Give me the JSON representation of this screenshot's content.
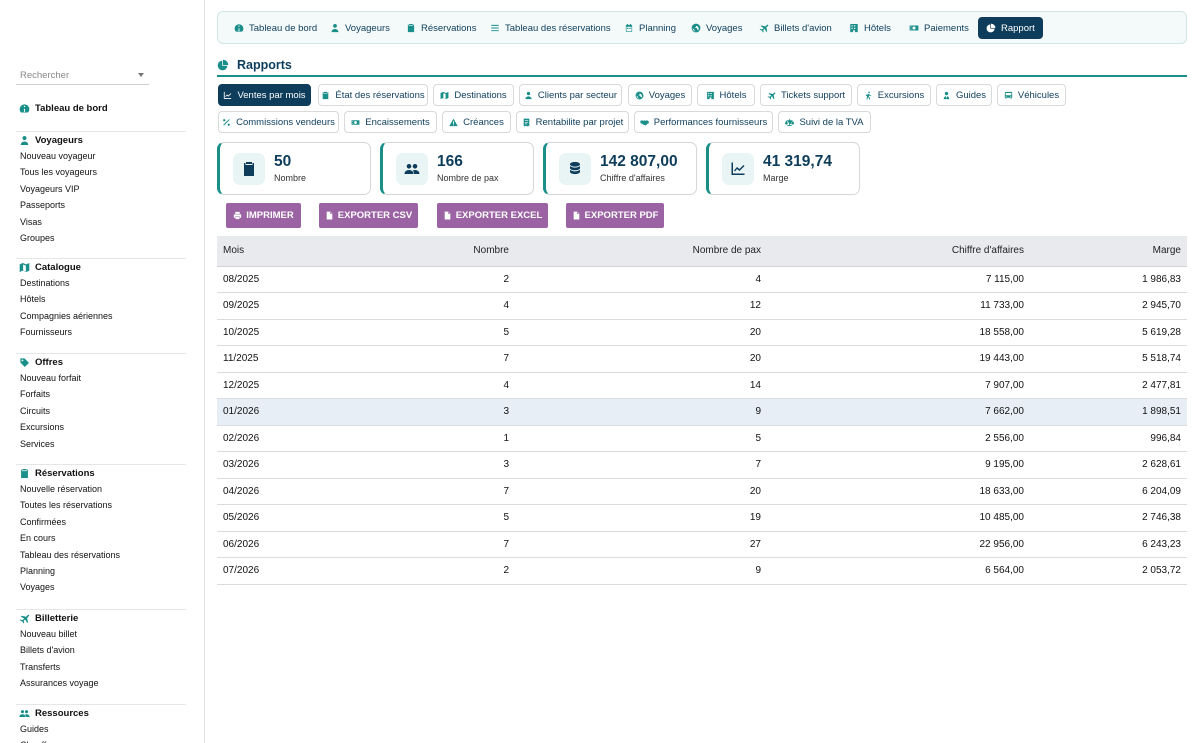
{
  "sidebar": {
    "search_placeholder": "Rechercher",
    "sections": [
      {
        "title": "Tableau de bord",
        "icon": "dashboard-icon",
        "items": []
      },
      {
        "title": "Voyageurs",
        "icon": "user-icon",
        "items": [
          "Nouveau voyageur",
          "Tous les voyageurs",
          "Voyageurs VIP",
          "Passeports",
          "Visas",
          "Groupes"
        ]
      },
      {
        "title": "Catalogue",
        "icon": "map-icon",
        "items": [
          "Destinations",
          "Hôtels",
          "Compagnies aériennes",
          "Fournisseurs"
        ]
      },
      {
        "title": "Offres",
        "icon": "tag-icon",
        "items": [
          "Nouveau forfait",
          "Forfaits",
          "Circuits",
          "Excursions",
          "Services"
        ]
      },
      {
        "title": "Réservations",
        "icon": "clipboard-icon",
        "items": [
          "Nouvelle réservation",
          "Toutes les réservations",
          "Confirmées",
          "En cours",
          "Tableau des réservations",
          "Planning",
          "Voyages"
        ]
      },
      {
        "title": "Billetterie",
        "icon": "plane-icon",
        "items": [
          "Nouveau billet",
          "Billets d'avion",
          "Transferts",
          "Assurances voyage"
        ]
      },
      {
        "title": "Ressources",
        "icon": "users-icon",
        "items": [
          "Guides",
          "Chauffeurs"
        ]
      }
    ]
  },
  "topnav": [
    {
      "label": "Tableau de bord",
      "icon": "dashboard-icon",
      "active": false
    },
    {
      "label": "Voyageurs",
      "icon": "user-icon",
      "active": false
    },
    {
      "label": "Réservations",
      "icon": "clipboard-icon",
      "active": false
    },
    {
      "label": "Tableau des réservations",
      "icon": "list-icon",
      "active": false
    },
    {
      "label": "Planning",
      "icon": "calendar-icon",
      "active": false
    },
    {
      "label": "Voyages",
      "icon": "globe-icon",
      "active": false
    },
    {
      "label": "Billets d'avion",
      "icon": "plane-icon",
      "active": false
    },
    {
      "label": "Hôtels",
      "icon": "hotel-icon",
      "active": false
    },
    {
      "label": "Paiements",
      "icon": "money-icon",
      "active": false
    },
    {
      "label": "Rapport",
      "icon": "pie-chart-icon",
      "active": true
    }
  ],
  "page": {
    "title": "Rapports"
  },
  "tabs": [
    {
      "label": "Ventes par mois",
      "icon": "chart-line-icon",
      "active": true
    },
    {
      "label": "État des réservations",
      "icon": "clipboard-icon",
      "active": false
    },
    {
      "label": "Destinations",
      "icon": "map-icon",
      "active": false
    },
    {
      "label": "Clients par secteur",
      "icon": "user-icon",
      "active": false
    },
    {
      "label": "Voyages",
      "icon": "globe-icon",
      "active": false
    },
    {
      "label": "Hôtels",
      "icon": "hotel-icon",
      "active": false
    },
    {
      "label": "Tickets support",
      "icon": "plane-icon",
      "active": false
    },
    {
      "label": "Excursions",
      "icon": "hiking-icon",
      "active": false
    },
    {
      "label": "Guides",
      "icon": "user-tie-icon",
      "active": false
    },
    {
      "label": "Véhicules",
      "icon": "bus-icon",
      "active": false
    },
    {
      "label": "Commissions vendeurs",
      "icon": "percent-icon",
      "active": false
    },
    {
      "label": "Encaissements",
      "icon": "money-icon",
      "active": false
    },
    {
      "label": "Créances",
      "icon": "warning-icon",
      "active": false
    },
    {
      "label": "Rentabilite par projet",
      "icon": "receipt-icon",
      "active": false
    },
    {
      "label": "Performances fournisseurs",
      "icon": "handshake-icon",
      "active": false
    },
    {
      "label": "Suivi de la TVA",
      "icon": "scale-icon",
      "active": false
    }
  ],
  "stats": [
    {
      "value": "50",
      "label": "Nombre",
      "icon": "clipboard-check-icon"
    },
    {
      "value": "166",
      "label": "Nombre de pax",
      "icon": "users-icon"
    },
    {
      "value": "142 807,00",
      "label": "Chiffre d'affaires",
      "icon": "coins-icon"
    },
    {
      "value": "41 319,74",
      "label": "Marge",
      "icon": "chart-line-icon"
    }
  ],
  "actions": [
    {
      "label": "IMPRIMER",
      "icon": "print-icon"
    },
    {
      "label": "EXPORTER CSV",
      "icon": "file-csv-icon"
    },
    {
      "label": "EXPORTER EXCEL",
      "icon": "file-excel-icon"
    },
    {
      "label": "EXPORTER PDF",
      "icon": "file-pdf-icon"
    }
  ],
  "table": {
    "headers": [
      "Mois",
      "Nombre",
      "Nombre de pax",
      "Chiffre d'affaires",
      "Marge"
    ],
    "rows": [
      [
        "08/2025",
        "2",
        "4",
        "7 115,00",
        "1 986,83"
      ],
      [
        "09/2025",
        "4",
        "12",
        "11 733,00",
        "2 945,70"
      ],
      [
        "10/2025",
        "5",
        "20",
        "18 558,00",
        "5 619,28"
      ],
      [
        "11/2025",
        "7",
        "20",
        "19 443,00",
        "5 518,74"
      ],
      [
        "12/2025",
        "4",
        "14",
        "7 907,00",
        "2 477,81"
      ],
      [
        "01/2026",
        "3",
        "9",
        "7 662,00",
        "1 898,51"
      ],
      [
        "02/2026",
        "1",
        "5",
        "2 556,00",
        "996,84"
      ],
      [
        "03/2026",
        "3",
        "7",
        "9 195,00",
        "2 628,61"
      ],
      [
        "04/2026",
        "7",
        "20",
        "18 633,00",
        "6 204,09"
      ],
      [
        "05/2026",
        "5",
        "19",
        "10 485,00",
        "2 746,38"
      ],
      [
        "06/2026",
        "7",
        "27",
        "22 956,00",
        "6 243,23"
      ],
      [
        "07/2026",
        "2",
        "9",
        "6 564,00",
        "2 053,72"
      ]
    ],
    "highlighted_row": 5
  },
  "colors": {
    "accent": "#1a8f8a",
    "navy": "#0d3d5b",
    "button": "#9b63a3"
  }
}
